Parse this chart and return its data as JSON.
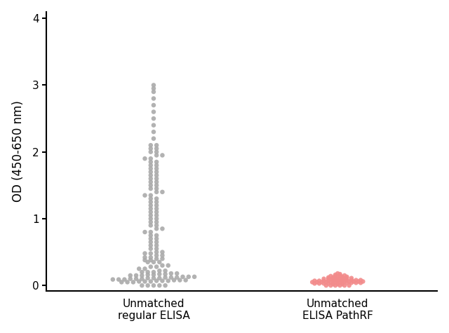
{
  "group1_label": "Unmatched\nregular ELISA",
  "group2_label": "Unmatched\nELISA PathRF",
  "ylabel": "OD (450-650 nm)",
  "ylim": [
    -0.08,
    4.1
  ],
  "yticks": [
    0,
    1,
    2,
    3,
    4
  ],
  "group1_color": "#AAAAAA",
  "group2_color": "#F28B8B",
  "group1_x_center": 1.0,
  "group2_x_center": 2.2,
  "xlim": [
    0.3,
    2.85
  ],
  "point_size": 22,
  "group1_data": [
    0.0,
    0.0,
    0.0,
    0.0,
    0.0,
    0.05,
    0.05,
    0.05,
    0.06,
    0.06,
    0.06,
    0.07,
    0.07,
    0.07,
    0.08,
    0.08,
    0.08,
    0.09,
    0.09,
    0.09,
    0.1,
    0.1,
    0.1,
    0.11,
    0.11,
    0.11,
    0.12,
    0.12,
    0.12,
    0.13,
    0.13,
    0.13,
    0.15,
    0.15,
    0.15,
    0.16,
    0.16,
    0.17,
    0.17,
    0.18,
    0.18,
    0.2,
    0.2,
    0.2,
    0.22,
    0.22,
    0.25,
    0.25,
    0.28,
    0.28,
    0.3,
    0.3,
    0.35,
    0.35,
    0.35,
    0.38,
    0.38,
    0.4,
    0.4,
    0.42,
    0.42,
    0.45,
    0.45,
    0.48,
    0.48,
    0.5,
    0.5,
    0.55,
    0.55,
    0.6,
    0.6,
    0.65,
    0.65,
    0.7,
    0.7,
    0.75,
    0.75,
    0.8,
    0.8,
    0.85,
    0.85,
    0.9,
    0.9,
    0.95,
    0.95,
    1.0,
    1.0,
    1.05,
    1.05,
    1.1,
    1.1,
    1.15,
    1.15,
    1.2,
    1.2,
    1.25,
    1.25,
    1.3,
    1.3,
    1.35,
    1.35,
    1.4,
    1.4,
    1.45,
    1.45,
    1.5,
    1.5,
    1.55,
    1.55,
    1.6,
    1.6,
    1.65,
    1.65,
    1.7,
    1.7,
    1.75,
    1.75,
    1.8,
    1.8,
    1.85,
    1.85,
    1.9,
    1.9,
    1.95,
    1.95,
    2.0,
    2.0,
    2.05,
    2.05,
    2.1,
    2.1,
    2.2,
    2.3,
    2.4,
    2.5,
    2.6,
    2.7,
    2.8,
    2.9,
    2.95,
    3.0
  ],
  "group2_data": [
    0.0,
    0.0,
    0.0,
    0.0,
    0.0,
    0.0,
    0.02,
    0.02,
    0.02,
    0.03,
    0.03,
    0.03,
    0.03,
    0.03,
    0.04,
    0.04,
    0.04,
    0.04,
    0.04,
    0.04,
    0.05,
    0.05,
    0.05,
    0.05,
    0.05,
    0.05,
    0.06,
    0.06,
    0.06,
    0.06,
    0.06,
    0.06,
    0.07,
    0.07,
    0.07,
    0.07,
    0.07,
    0.07,
    0.08,
    0.08,
    0.08,
    0.08,
    0.08,
    0.09,
    0.09,
    0.09,
    0.09,
    0.1,
    0.1,
    0.1,
    0.1,
    0.11,
    0.11,
    0.11,
    0.12,
    0.12,
    0.12,
    0.13,
    0.13,
    0.14,
    0.14,
    0.15,
    0.15,
    0.16,
    0.17,
    0.18
  ]
}
